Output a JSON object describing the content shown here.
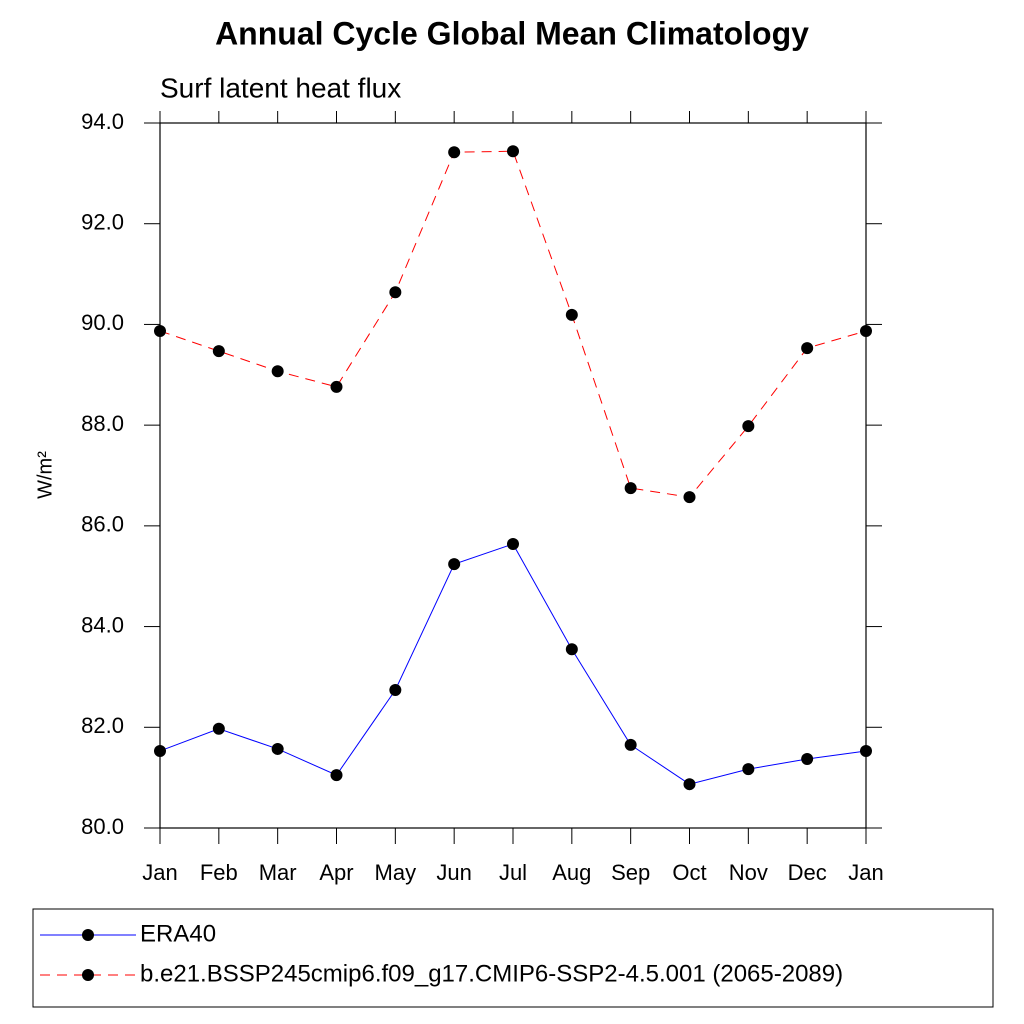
{
  "chart_data": {
    "type": "line",
    "title": "Annual Cycle Global Mean Climatology",
    "subtitle": "Surf latent heat flux",
    "ylabel": "W/m²",
    "categories": [
      "Jan",
      "Feb",
      "Mar",
      "Apr",
      "May",
      "Jun",
      "Jul",
      "Aug",
      "Sep",
      "Oct",
      "Nov",
      "Dec",
      "Jan"
    ],
    "series": [
      {
        "name": "ERA40",
        "color": "#0000ff",
        "dashed": false,
        "values": [
          81.53,
          81.97,
          81.57,
          81.05,
          82.74,
          85.24,
          85.64,
          83.55,
          81.65,
          80.87,
          81.17,
          81.37,
          81.53
        ]
      },
      {
        "name": "b.e21.BSSP245cmip6.f09_g17.CMIP6-SSP2-4.5.001 (2065-2089)",
        "color": "#ff0000",
        "dashed": true,
        "values": [
          89.87,
          89.47,
          89.07,
          88.76,
          90.64,
          93.42,
          93.44,
          90.19,
          86.75,
          86.57,
          87.98,
          89.53,
          89.87
        ]
      }
    ],
    "ylim": [
      80,
      94
    ],
    "yticks": [
      {
        "value": 80,
        "label": "80.0"
      },
      {
        "value": 82,
        "label": "82.0"
      },
      {
        "value": 84,
        "label": "84.0"
      },
      {
        "value": 86,
        "label": "86.0"
      },
      {
        "value": 88,
        "label": "88.0"
      },
      {
        "value": 90,
        "label": "90.0"
      },
      {
        "value": 92,
        "label": "92.0"
      },
      {
        "value": 94,
        "label": "94.0"
      }
    ],
    "grid": false,
    "legend": "bottom"
  }
}
